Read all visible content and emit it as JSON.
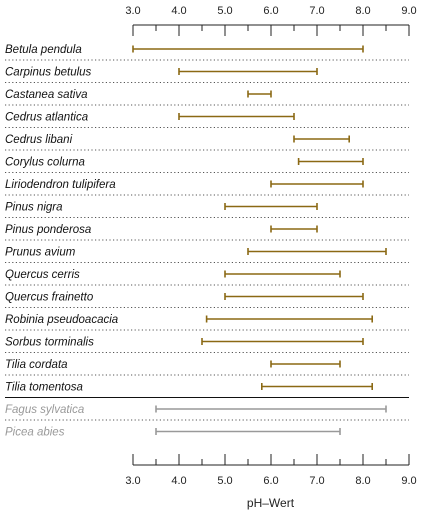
{
  "chart_data": {
    "type": "range",
    "title": "",
    "xlabel": "pH–Wert",
    "ylabel": "",
    "xlim": [
      3.0,
      9.0
    ],
    "major_ticks": [
      "3.0",
      "4.0",
      "5.0",
      "6.0",
      "7.0",
      "8.0",
      "9.0"
    ],
    "minor_tick_values": [
      3.5,
      4.5,
      5.5,
      6.5,
      7.5,
      8.5
    ],
    "tick_axes": [
      "top",
      "bottom"
    ],
    "row_separators": "dotted",
    "group_separator": "solid line after first group",
    "colors": {
      "group1": "#8b6914",
      "group2": "#999999",
      "axis": "#222222"
    },
    "groups": [
      {
        "color_key": "group1",
        "items": [
          {
            "name": "Betula pendula",
            "min": 3.0,
            "max": 8.0
          },
          {
            "name": "Carpinus betulus",
            "min": 4.0,
            "max": 7.0
          },
          {
            "name": "Castanea sativa",
            "min": 5.5,
            "max": 6.0
          },
          {
            "name": "Cedrus atlantica",
            "min": 4.0,
            "max": 6.5
          },
          {
            "name": "Cedrus libani",
            "min": 6.5,
            "max": 7.7
          },
          {
            "name": "Corylus colurna",
            "min": 6.6,
            "max": 8.0
          },
          {
            "name": "Liriodendron tulipifera",
            "min": 6.0,
            "max": 8.0
          },
          {
            "name": "Pinus nigra",
            "min": 5.0,
            "max": 7.0
          },
          {
            "name": "Pinus ponderosa",
            "min": 6.0,
            "max": 7.0
          },
          {
            "name": "Prunus avium",
            "min": 5.5,
            "max": 8.5
          },
          {
            "name": "Quercus cerris",
            "min": 5.0,
            "max": 7.5
          },
          {
            "name": "Quercus frainetto",
            "min": 5.0,
            "max": 8.0
          },
          {
            "name": "Robinia pseudoacacia",
            "min": 4.6,
            "max": 8.2
          },
          {
            "name": "Sorbus torminalis",
            "min": 4.5,
            "max": 8.0
          },
          {
            "name": "Tilia cordata",
            "min": 6.0,
            "max": 7.5
          },
          {
            "name": "Tilia tomentosa",
            "min": 5.8,
            "max": 8.2
          }
        ]
      },
      {
        "color_key": "group2",
        "items": [
          {
            "name": "Fagus sylvatica",
            "min": 3.5,
            "max": 8.5
          },
          {
            "name": "Picea abies",
            "min": 3.5,
            "max": 7.5
          }
        ]
      }
    ]
  }
}
